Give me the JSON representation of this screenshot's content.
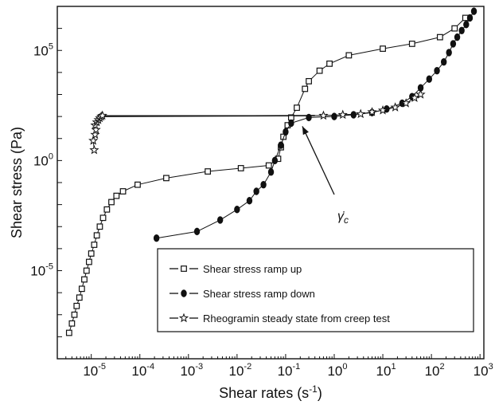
{
  "chart_data": {
    "type": "scatter",
    "xlabel": "Shear rates (s",
    "xlabel_sup": "-1",
    "xlabel_end": ")",
    "ylabel": "Shear stress (Pa)",
    "x_scale": "log",
    "y_scale": "log",
    "xlim": [
      2e-06,
      1200
    ],
    "ylim": [
      1e-09,
      10000000.0
    ],
    "x_ticks": [
      {
        "value": 1e-05,
        "base": "10",
        "exp": "-5"
      },
      {
        "value": 0.0001,
        "base": "10",
        "exp": "-4"
      },
      {
        "value": 0.001,
        "base": "10",
        "exp": "-3"
      },
      {
        "value": 0.01,
        "base": "10",
        "exp": "-2"
      },
      {
        "value": 0.1,
        "base": "10",
        "exp": "-1"
      },
      {
        "value": 1,
        "base": "10",
        "exp": "0"
      },
      {
        "value": 10,
        "base": "10",
        "exp": "1"
      },
      {
        "value": 100,
        "base": "10",
        "exp": "2"
      },
      {
        "value": 1000,
        "base": "10",
        "exp": "3"
      }
    ],
    "y_ticks": [
      {
        "value": 100000.0,
        "base": "10",
        "exp": "5"
      },
      {
        "value": 1,
        "base": "10",
        "exp": "0"
      },
      {
        "value": 1e-05,
        "base": "10",
        "exp": "-5"
      }
    ],
    "grid": false,
    "legend_position": "bottom-right",
    "annotation": {
      "text": "γ̇",
      "sub": "c",
      "target_x": 0.19,
      "target_y": 50
    },
    "series": [
      {
        "name": "Shear stress ramp up",
        "marker": "square-open",
        "points": [
          [
            3.5e-06,
            1.5e-08
          ],
          [
            4e-06,
            4e-08
          ],
          [
            4.5e-06,
            1e-07
          ],
          [
            5e-06,
            2.5e-07
          ],
          [
            5.7e-06,
            6e-07
          ],
          [
            6.4e-06,
            1.5e-06
          ],
          [
            7.2e-06,
            4e-06
          ],
          [
            8e-06,
            1e-05
          ],
          [
            9e-06,
            2.5e-05
          ],
          [
            1e-05,
            6e-05
          ],
          [
            1.15e-05,
            0.00015
          ],
          [
            1.3e-05,
            0.0004
          ],
          [
            1.5e-05,
            0.001
          ],
          [
            1.75e-05,
            0.0025
          ],
          [
            2.1e-05,
            0.006
          ],
          [
            2.6e-05,
            0.013
          ],
          [
            3.3e-05,
            0.025
          ],
          [
            4.5e-05,
            0.04
          ],
          [
            9e-05,
            0.08
          ],
          [
            0.00035,
            0.16
          ],
          [
            0.0025,
            0.32
          ],
          [
            0.012,
            0.45
          ],
          [
            0.045,
            0.6
          ],
          [
            0.07,
            1.2
          ],
          [
            0.08,
            4
          ],
          [
            0.09,
            12
          ],
          [
            0.11,
            40
          ],
          [
            0.13,
            90
          ],
          [
            0.17,
            250
          ],
          [
            0.25,
            1800
          ],
          [
            0.3,
            4000
          ],
          [
            0.5,
            12000
          ],
          [
            0.8,
            25000
          ],
          [
            2,
            60000
          ],
          [
            10,
            120000
          ],
          [
            40,
            200000
          ],
          [
            150,
            400000
          ],
          [
            300,
            1000000
          ],
          [
            500,
            3000000
          ]
        ]
      },
      {
        "name": "Shear stress ramp down",
        "marker": "circle-filled",
        "points": [
          [
            0.00022,
            0.0003
          ],
          [
            0.0015,
            0.0006
          ],
          [
            0.0045,
            0.002
          ],
          [
            0.01,
            0.006
          ],
          [
            0.018,
            0.015
          ],
          [
            0.025,
            0.04
          ],
          [
            0.035,
            0.08
          ],
          [
            0.05,
            0.3
          ],
          [
            0.06,
            1
          ],
          [
            0.08,
            5
          ],
          [
            0.1,
            20
          ],
          [
            0.13,
            50
          ],
          [
            0.3,
            90
          ],
          [
            1,
            100
          ],
          [
            2.5,
            120
          ],
          [
            6,
            150
          ],
          [
            12,
            220
          ],
          [
            25,
            400
          ],
          [
            40,
            800
          ],
          [
            60,
            2000
          ],
          [
            90,
            5000
          ],
          [
            130,
            12000
          ],
          [
            180,
            30000
          ],
          [
            230,
            80000
          ],
          [
            280,
            200000
          ],
          [
            340,
            400000
          ],
          [
            420,
            800000
          ],
          [
            520,
            1500000
          ],
          [
            620,
            3000000
          ],
          [
            750,
            6000000
          ]
        ]
      },
      {
        "name": "Rheogramin steady state from creep test",
        "marker": "star-open",
        "points": [
          [
            1.15e-05,
            3
          ],
          [
            1.1e-05,
            8
          ],
          [
            1.2e-05,
            15
          ],
          [
            1.25e-05,
            25
          ],
          [
            1.2e-05,
            40
          ],
          [
            1.3e-05,
            55
          ],
          [
            1.4e-05,
            70
          ],
          [
            1.5e-05,
            85
          ],
          [
            1.6e-05,
            100
          ],
          [
            1.7e-05,
            110
          ],
          [
            0.6,
            110
          ],
          [
            1.5,
            120
          ],
          [
            3.5,
            130
          ],
          [
            6,
            160
          ],
          [
            10,
            190
          ],
          [
            18,
            260
          ],
          [
            30,
            400
          ],
          [
            45,
            700
          ],
          [
            60,
            1000
          ]
        ]
      }
    ],
    "steady_line": [
      [
        1.6e-05,
        100
      ],
      [
        0.4,
        110
      ]
    ],
    "legend": [
      {
        "label": "Shear stress ramp up",
        "marker": "square-open"
      },
      {
        "label": "Shear stress ramp down",
        "marker": "circle-filled"
      },
      {
        "label": "Rheogramin steady state from creep test",
        "marker": "star-open"
      }
    ]
  }
}
